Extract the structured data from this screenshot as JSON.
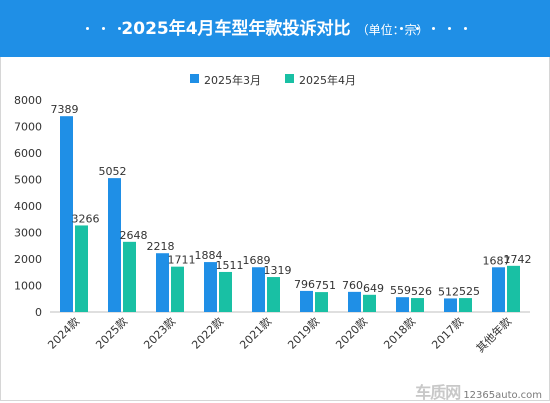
{
  "title": {
    "main": "2025年4月车型年款投诉对比",
    "unit": "（单位：宗）"
  },
  "colors": {
    "header": "#1f8fe6",
    "series_march": "#1f8fe6",
    "series_april": "#19c0a4"
  },
  "chart_data": {
    "type": "bar",
    "categories": [
      "2024款",
      "2025款",
      "2023款",
      "2022款",
      "2021款",
      "2019款",
      "2020款",
      "2018款",
      "2017款",
      "其他年款"
    ],
    "series": [
      {
        "name": "2025年3月",
        "color": "#1f8fe6",
        "values": [
          7389,
          5052,
          2218,
          1884,
          1689,
          796,
          760,
          559,
          512,
          1687
        ]
      },
      {
        "name": "2025年4月",
        "color": "#19c0a4",
        "values": [
          3266,
          2648,
          1711,
          1511,
          1319,
          751,
          649,
          526,
          525,
          1742
        ]
      }
    ],
    "ylim": [
      0,
      8000
    ],
    "yticks": [
      0,
      1000,
      2000,
      3000,
      4000,
      5000,
      6000,
      7000,
      8000
    ],
    "legend_position": "top-center",
    "grid": false,
    "xlabel": "",
    "ylabel": ""
  },
  "watermark": {
    "logo": "车质网",
    "domain": "12365auto.com"
  }
}
